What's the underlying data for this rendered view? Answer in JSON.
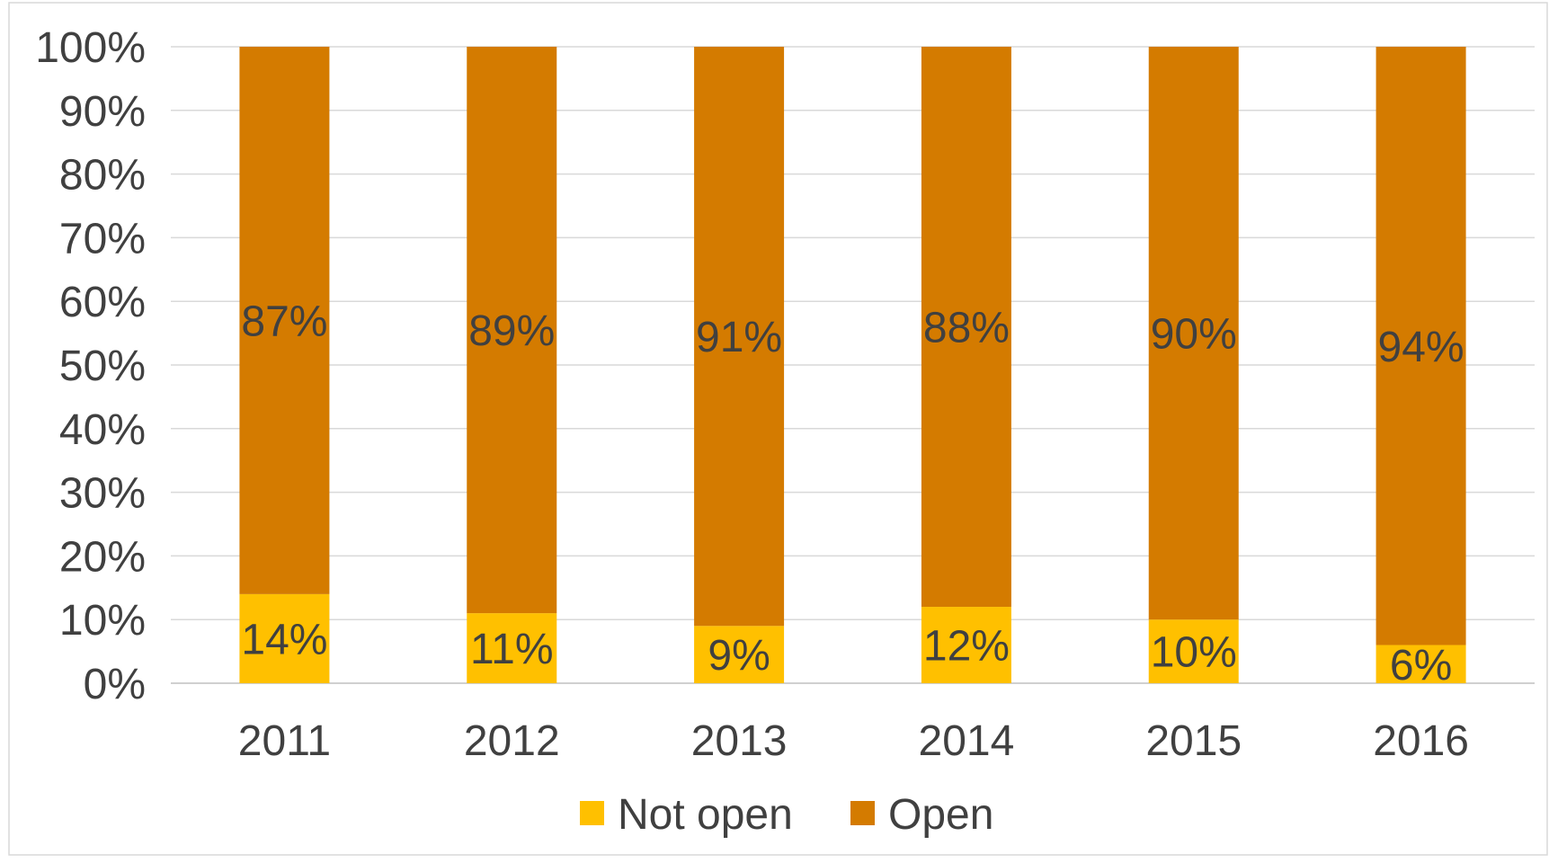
{
  "chart_data": {
    "type": "bar",
    "stacked": true,
    "categories": [
      "2011",
      "2012",
      "2013",
      "2014",
      "2015",
      "2016"
    ],
    "series": [
      {
        "name": "Not open",
        "values": [
          14,
          11,
          9,
          12,
          10,
          6
        ],
        "labels": [
          "14%",
          "11%",
          "9%",
          "12%",
          "10%",
          "6%"
        ],
        "color": "#FFC000"
      },
      {
        "name": "Open",
        "values": [
          87,
          89,
          91,
          88,
          90,
          94
        ],
        "labels": [
          "87%",
          "89%",
          "91%",
          "88%",
          "90%",
          "94%"
        ],
        "color": "#D47B00"
      }
    ],
    "ylim": [
      0,
      100
    ],
    "yticks": [
      "0%",
      "10%",
      "20%",
      "30%",
      "40%",
      "50%",
      "60%",
      "70%",
      "80%",
      "90%",
      "100%"
    ],
    "grid": true,
    "legend": "bottom",
    "title": "",
    "xlabel": "",
    "ylabel": ""
  }
}
